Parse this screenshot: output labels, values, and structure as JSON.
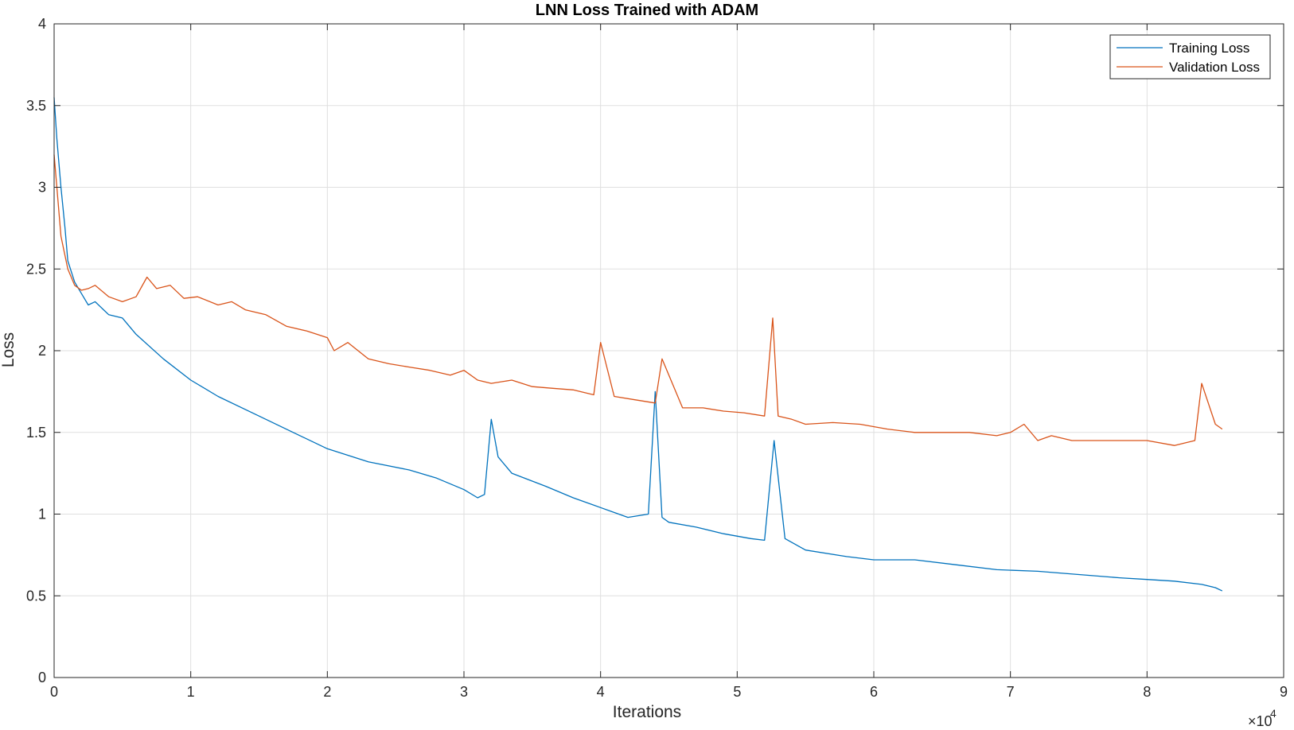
{
  "chart_data": {
    "type": "line",
    "title": "LNN Loss Trained with ADAM",
    "xlabel": "Iterations",
    "ylabel": "Loss",
    "x_exponent_label": "×10",
    "x_exponent_power": "4",
    "xlim": [
      0,
      9
    ],
    "ylim": [
      0,
      4
    ],
    "x_ticks": [
      0,
      1,
      2,
      3,
      4,
      5,
      6,
      7,
      8,
      9
    ],
    "x_tick_labels": [
      "0",
      "1",
      "2",
      "3",
      "4",
      "5",
      "6",
      "7",
      "8",
      "9"
    ],
    "y_ticks": [
      0,
      0.5,
      1,
      1.5,
      2,
      2.5,
      3,
      3.5,
      4
    ],
    "y_tick_labels": [
      "0",
      "0.5",
      "1",
      "1.5",
      "2",
      "2.5",
      "3",
      "3.5",
      "4"
    ],
    "grid": true,
    "legend_position": "top-right",
    "series": [
      {
        "name": "Training Loss",
        "color": "#0072BD",
        "x": [
          0,
          0.02,
          0.05,
          0.08,
          0.1,
          0.15,
          0.2,
          0.25,
          0.3,
          0.4,
          0.5,
          0.6,
          0.8,
          1.0,
          1.2,
          1.5,
          1.8,
          2.0,
          2.3,
          2.6,
          2.8,
          3.0,
          3.1,
          3.15,
          3.2,
          3.25,
          3.35,
          3.6,
          3.8,
          4.0,
          4.2,
          4.35,
          4.4,
          4.45,
          4.5,
          4.7,
          4.9,
          5.1,
          5.2,
          5.27,
          5.35,
          5.5,
          5.8,
          6.0,
          6.3,
          6.6,
          6.9,
          7.2,
          7.5,
          7.8,
          8.0,
          8.2,
          8.4,
          8.5,
          8.55
        ],
        "y": [
          3.55,
          3.3,
          3.0,
          2.75,
          2.55,
          2.42,
          2.35,
          2.28,
          2.3,
          2.22,
          2.2,
          2.1,
          1.95,
          1.82,
          1.72,
          1.6,
          1.48,
          1.4,
          1.32,
          1.27,
          1.22,
          1.15,
          1.1,
          1.12,
          1.58,
          1.35,
          1.25,
          1.17,
          1.1,
          1.04,
          0.98,
          1.0,
          1.75,
          0.98,
          0.95,
          0.92,
          0.88,
          0.85,
          0.84,
          1.45,
          0.85,
          0.78,
          0.74,
          0.72,
          0.72,
          0.69,
          0.66,
          0.65,
          0.63,
          0.61,
          0.6,
          0.59,
          0.57,
          0.55,
          0.53
        ]
      },
      {
        "name": "Validation Loss",
        "color": "#D95319",
        "x": [
          0,
          0.05,
          0.1,
          0.15,
          0.2,
          0.25,
          0.3,
          0.4,
          0.5,
          0.6,
          0.68,
          0.75,
          0.85,
          0.95,
          1.05,
          1.2,
          1.3,
          1.4,
          1.55,
          1.7,
          1.85,
          2.0,
          2.05,
          2.15,
          2.3,
          2.45,
          2.6,
          2.75,
          2.9,
          3.0,
          3.1,
          3.2,
          3.35,
          3.5,
          3.65,
          3.8,
          3.95,
          4.0,
          4.1,
          4.25,
          4.4,
          4.45,
          4.6,
          4.75,
          4.9,
          5.05,
          5.2,
          5.26,
          5.3,
          5.4,
          5.5,
          5.7,
          5.9,
          6.1,
          6.3,
          6.5,
          6.7,
          6.9,
          7.0,
          7.1,
          7.2,
          7.3,
          7.45,
          7.6,
          7.8,
          8.0,
          8.2,
          8.35,
          8.4,
          8.5,
          8.55
        ],
        "y": [
          3.2,
          2.7,
          2.5,
          2.4,
          2.37,
          2.38,
          2.4,
          2.33,
          2.3,
          2.33,
          2.45,
          2.38,
          2.4,
          2.32,
          2.33,
          2.28,
          2.3,
          2.25,
          2.22,
          2.15,
          2.12,
          2.08,
          2.0,
          2.05,
          1.95,
          1.92,
          1.9,
          1.88,
          1.85,
          1.88,
          1.82,
          1.8,
          1.82,
          1.78,
          1.77,
          1.76,
          1.73,
          2.05,
          1.72,
          1.7,
          1.68,
          1.95,
          1.65,
          1.65,
          1.63,
          1.62,
          1.6,
          2.2,
          1.6,
          1.58,
          1.55,
          1.56,
          1.55,
          1.52,
          1.5,
          1.5,
          1.5,
          1.48,
          1.5,
          1.55,
          1.45,
          1.48,
          1.45,
          1.45,
          1.45,
          1.45,
          1.42,
          1.45,
          1.8,
          1.55,
          1.52
        ]
      }
    ]
  }
}
